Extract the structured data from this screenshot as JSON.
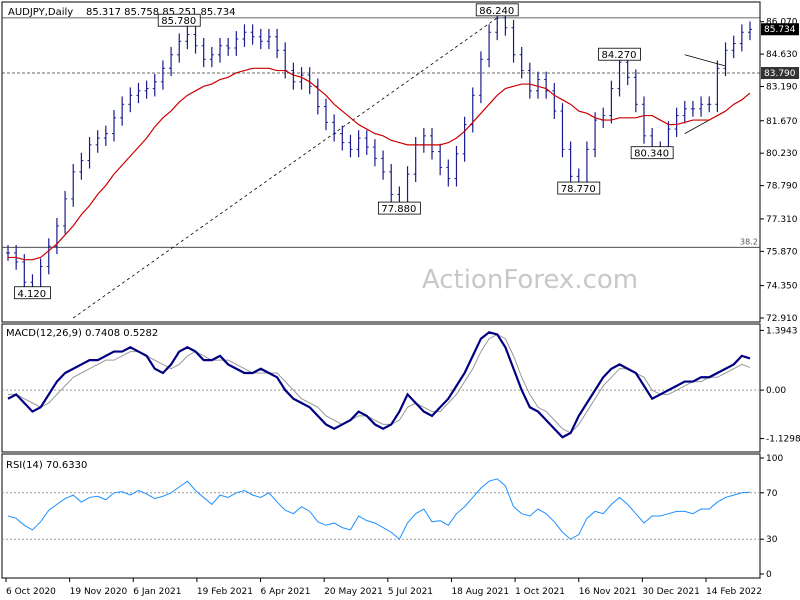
{
  "header": {
    "symbol": "AUDJPY,Daily",
    "ohlc": "85.317 85.758 85.251 85.734"
  },
  "watermark": "ActionForex.com",
  "colors": {
    "price": "#1a1a8c",
    "sma": "#cc0000",
    "macd_line": "#000080",
    "macd_signal": "#999999",
    "rsi": "#1e90ff",
    "current_price_box": "#000000",
    "level_box": "#333333"
  },
  "chart_data": [
    {
      "type": "ohlc",
      "title": "AUDJPY,Daily",
      "ylim": [
        72.91,
        86.5
      ],
      "y_ticks": [
        "86.070",
        "84.630",
        "83.190",
        "81.670",
        "80.230",
        "78.790",
        "77.310",
        "75.870",
        "74.350",
        "72.910"
      ],
      "current_price": "85.734",
      "horizontal_levels": [
        {
          "label": "83.790",
          "value": 83.79,
          "style": "dashed"
        },
        {
          "label": "38.2",
          "value": 76.05,
          "style": "solid"
        },
        {
          "label": "",
          "value": 86.24,
          "style": "solid"
        }
      ],
      "annotations": [
        {
          "label": "4.120",
          "value": 74.12
        },
        {
          "label": "85.780",
          "value": 85.78
        },
        {
          "label": "86.240",
          "value": 86.24
        },
        {
          "label": "77.880",
          "value": 77.88
        },
        {
          "label": "84.270",
          "value": 84.27
        },
        {
          "label": "78.770",
          "value": 78.77
        },
        {
          "label": "80.340",
          "value": 80.34
        }
      ],
      "close_series": [
        75.8,
        75.4,
        74.5,
        74.2,
        75.2,
        76.1,
        77.0,
        78.2,
        79.4,
        79.9,
        80.6,
        80.9,
        81.1,
        81.8,
        82.4,
        82.8,
        83.0,
        83.1,
        83.4,
        84.0,
        84.6,
        85.2,
        85.5,
        85.0,
        84.4,
        84.6,
        85.0,
        84.9,
        85.3,
        85.6,
        85.4,
        85.2,
        85.4,
        84.8,
        83.9,
        83.4,
        83.7,
        83.2,
        82.3,
        81.6,
        81.1,
        80.7,
        80.4,
        80.9,
        80.5,
        80.0,
        79.4,
        78.4,
        77.9,
        79.3,
        80.6,
        81.0,
        80.3,
        79.6,
        79.1,
        80.2,
        81.5,
        82.8,
        84.4,
        85.6,
        86.24,
        85.8,
        84.6,
        83.9,
        83.0,
        83.5,
        83.0,
        82.1,
        80.4,
        79.2,
        78.9,
        80.4,
        81.7,
        81.9,
        83.1,
        84.27,
        83.6,
        82.4,
        81.0,
        80.4,
        80.4,
        81.3,
        81.9,
        82.2,
        82.2,
        82.4,
        82.4,
        84.0,
        84.8,
        85.1,
        85.6,
        85.73
      ],
      "sma_series": [
        75.6,
        75.6,
        75.5,
        75.5,
        75.6,
        75.9,
        76.2,
        76.6,
        77.0,
        77.5,
        77.9,
        78.4,
        78.8,
        79.3,
        79.7,
        80.1,
        80.5,
        80.9,
        81.4,
        81.8,
        82.1,
        82.5,
        82.8,
        83.0,
        83.2,
        83.3,
        83.5,
        83.6,
        83.8,
        83.9,
        84.0,
        84.0,
        84.0,
        83.9,
        83.9,
        83.7,
        83.6,
        83.4,
        83.1,
        82.8,
        82.4,
        82.1,
        81.8,
        81.5,
        81.3,
        81.1,
        81.0,
        80.8,
        80.7,
        80.6,
        80.6,
        80.6,
        80.6,
        80.6,
        80.7,
        80.9,
        81.2,
        81.6,
        82.0,
        82.4,
        82.8,
        83.1,
        83.2,
        83.3,
        83.3,
        83.2,
        83.1,
        82.8,
        82.6,
        82.4,
        82.1,
        82.0,
        81.8,
        81.7,
        81.7,
        81.8,
        81.8,
        81.8,
        81.9,
        81.9,
        81.7,
        81.5,
        81.5,
        81.6,
        81.7,
        81.7,
        81.7,
        81.9,
        82.1,
        82.4,
        82.6,
        82.9
      ]
    },
    {
      "type": "line",
      "title": "MACD(12,26,9) 0.7408 0.5282",
      "ylim": [
        -1.35,
        1.45
      ],
      "y_ticks": [
        "1.3943",
        "0.00",
        "-1.1298"
      ],
      "series": [
        {
          "name": "MACD",
          "values": [
            -0.2,
            -0.1,
            -0.3,
            -0.5,
            -0.4,
            -0.1,
            0.2,
            0.4,
            0.5,
            0.6,
            0.7,
            0.7,
            0.8,
            0.9,
            0.9,
            1.0,
            0.9,
            0.8,
            0.5,
            0.4,
            0.6,
            0.9,
            1.0,
            0.9,
            0.7,
            0.7,
            0.8,
            0.6,
            0.5,
            0.4,
            0.4,
            0.5,
            0.4,
            0.3,
            0.0,
            -0.2,
            -0.3,
            -0.4,
            -0.6,
            -0.8,
            -0.9,
            -0.8,
            -0.7,
            -0.5,
            -0.6,
            -0.8,
            -0.9,
            -0.8,
            -0.5,
            -0.1,
            -0.3,
            -0.5,
            -0.6,
            -0.4,
            -0.2,
            0.1,
            0.4,
            0.8,
            1.2,
            1.35,
            1.3,
            1.0,
            0.5,
            0.0,
            -0.4,
            -0.5,
            -0.7,
            -0.9,
            -1.1,
            -1.0,
            -0.6,
            -0.3,
            0.0,
            0.3,
            0.5,
            0.6,
            0.5,
            0.4,
            0.1,
            -0.2,
            -0.1,
            0.0,
            0.1,
            0.2,
            0.2,
            0.3,
            0.3,
            0.4,
            0.5,
            0.6,
            0.8,
            0.74
          ]
        },
        {
          "name": "Signal",
          "values": [
            -0.1,
            -0.1,
            -0.2,
            -0.3,
            -0.4,
            -0.3,
            -0.1,
            0.1,
            0.3,
            0.4,
            0.5,
            0.6,
            0.7,
            0.7,
            0.8,
            0.9,
            0.9,
            0.8,
            0.7,
            0.6,
            0.5,
            0.6,
            0.8,
            0.9,
            0.8,
            0.7,
            0.7,
            0.7,
            0.6,
            0.5,
            0.4,
            0.4,
            0.4,
            0.4,
            0.2,
            0.0,
            -0.2,
            -0.3,
            -0.4,
            -0.6,
            -0.7,
            -0.8,
            -0.7,
            -0.6,
            -0.6,
            -0.7,
            -0.8,
            -0.8,
            -0.7,
            -0.4,
            -0.3,
            -0.4,
            -0.5,
            -0.5,
            -0.3,
            -0.1,
            0.2,
            0.5,
            0.9,
            1.2,
            1.3,
            1.2,
            0.8,
            0.3,
            -0.1,
            -0.4,
            -0.5,
            -0.7,
            -0.9,
            -1.0,
            -0.8,
            -0.5,
            -0.2,
            0.1,
            0.3,
            0.5,
            0.5,
            0.4,
            0.3,
            0.0,
            -0.1,
            -0.1,
            0.0,
            0.1,
            0.2,
            0.2,
            0.3,
            0.3,
            0.4,
            0.5,
            0.6,
            0.53
          ]
        }
      ]
    },
    {
      "type": "line",
      "title": "RSI(14) 70.6330",
      "ylim": [
        0,
        100
      ],
      "y_ticks": [
        "100",
        "70",
        "30",
        "0"
      ],
      "levels": [
        70,
        30
      ],
      "series": [
        {
          "name": "RSI",
          "values": [
            50,
            48,
            42,
            38,
            45,
            55,
            60,
            65,
            68,
            62,
            66,
            67,
            64,
            70,
            71,
            68,
            72,
            69,
            65,
            67,
            70,
            75,
            80,
            72,
            66,
            60,
            68,
            66,
            70,
            72,
            68,
            66,
            70,
            62,
            55,
            52,
            58,
            54,
            45,
            42,
            44,
            40,
            38,
            50,
            46,
            44,
            40,
            36,
            30,
            44,
            52,
            56,
            45,
            46,
            42,
            52,
            58,
            66,
            74,
            80,
            82,
            76,
            58,
            52,
            50,
            56,
            52,
            45,
            36,
            30,
            34,
            48,
            54,
            52,
            60,
            66,
            60,
            52,
            44,
            50,
            50,
            52,
            54,
            54,
            52,
            56,
            56,
            62,
            66,
            68,
            70,
            70.6
          ]
        }
      ]
    }
  ],
  "x_axis": {
    "ticks": [
      "6 Oct 2020",
      "19 Nov 2020",
      "6 Jan 2021",
      "19 Feb 2021",
      "6 Apr 2021",
      "20 May 2021",
      "5 Jul 2021",
      "18 Aug 2021",
      "1 Oct 2021",
      "16 Nov 2021",
      "30 Dec 2021",
      "14 Feb 2022"
    ]
  }
}
